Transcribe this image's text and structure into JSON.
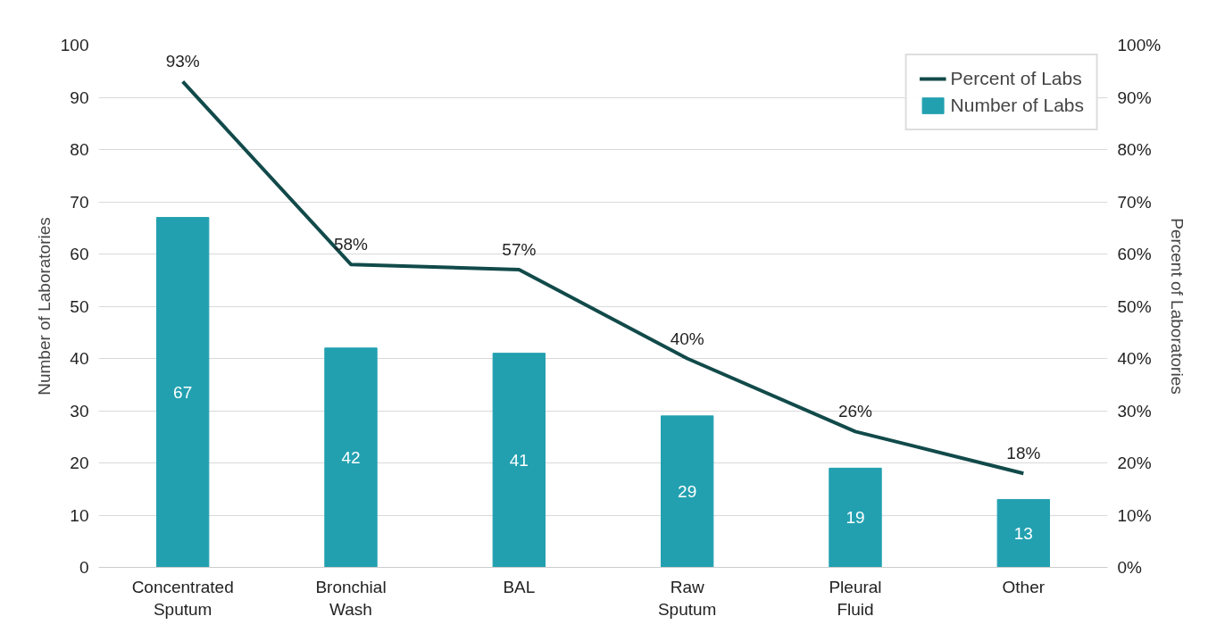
{
  "chart_data": {
    "type": "bar",
    "ylabel": "Number of Laboratories",
    "y2label": "Percent of Laboratories",
    "categories": [
      "Concentrated Sputum",
      "Bronchial Wash",
      "BAL",
      "Raw Sputum",
      "Pleural Fluid",
      "Other"
    ],
    "series": [
      {
        "name": "Percent of Labs",
        "type": "line",
        "axis": "y2",
        "color": "#124a4a",
        "values": [
          93,
          58,
          57,
          40,
          26,
          18
        ],
        "value_labels": [
          "93%",
          "58%",
          "57%",
          "40%",
          "26%",
          "18%"
        ]
      },
      {
        "name": "Number of Labs",
        "color": "#22a0b0",
        "values": [
          67,
          42,
          41,
          29,
          19,
          13
        ],
        "value_labels": [
          "67",
          "42",
          "41",
          "29",
          "19",
          "13"
        ]
      }
    ],
    "ylim": [
      0,
      100
    ],
    "yticks": [
      0,
      10,
      20,
      30,
      40,
      50,
      60,
      70,
      80,
      90,
      100
    ],
    "y2lim": [
      0,
      100
    ],
    "y2ticks": [
      {
        "value": 0,
        "label": "0%"
      },
      {
        "value": 10,
        "label": "10%"
      },
      {
        "value": 20,
        "label": "20%"
      },
      {
        "value": 30,
        "label": "30%"
      },
      {
        "value": 40,
        "label": "40%"
      },
      {
        "value": 50,
        "label": "50%"
      },
      {
        "value": 60,
        "label": "60%"
      },
      {
        "value": 70,
        "label": "70%"
      },
      {
        "value": 80,
        "label": "80%"
      },
      {
        "value": 90,
        "label": "90%"
      },
      {
        "value": 100,
        "label": "100%"
      }
    ],
    "grid": "y",
    "legend": "top right",
    "line_style": "solid",
    "marker": "none"
  }
}
